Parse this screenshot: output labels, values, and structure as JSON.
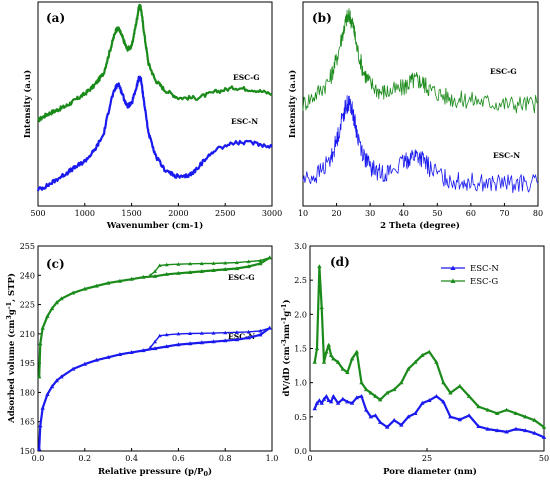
{
  "colors": {
    "g": "#1a8a1a",
    "n": "#1a1aee"
  },
  "chart_data": [
    {
      "panel": "(a)",
      "type": "line",
      "xlabel": "Wavenumber (cm-1)",
      "ylabel": "Intensity (a.u)",
      "xlim": [
        500,
        3000
      ],
      "ylim": [
        0,
        1
      ],
      "xticks": [
        500,
        1000,
        1500,
        2000,
        2500,
        3000
      ],
      "series": [
        {
          "name": "ESC-G",
          "color": "g",
          "x": [
            500,
            600,
            700,
            800,
            900,
            1000,
            1100,
            1200,
            1280,
            1330,
            1360,
            1400,
            1450,
            1500,
            1550,
            1580,
            1600,
            1630,
            1680,
            1750,
            1850,
            2000,
            2200,
            2400,
            2600,
            2800,
            3000
          ],
          "y": [
            0.42,
            0.45,
            0.47,
            0.49,
            0.52,
            0.55,
            0.59,
            0.65,
            0.78,
            0.86,
            0.87,
            0.83,
            0.77,
            0.78,
            0.9,
            0.98,
            0.97,
            0.86,
            0.7,
            0.62,
            0.57,
            0.53,
            0.53,
            0.56,
            0.58,
            0.57,
            0.55
          ]
        },
        {
          "name": "ESC-N",
          "color": "n",
          "x": [
            500,
            600,
            700,
            800,
            900,
            1000,
            1100,
            1200,
            1280,
            1330,
            1360,
            1400,
            1450,
            1500,
            1550,
            1580,
            1600,
            1630,
            1680,
            1750,
            1850,
            1950,
            2050,
            2150,
            2250,
            2400,
            2600,
            2800,
            3000
          ],
          "y": [
            0.08,
            0.1,
            0.13,
            0.16,
            0.19,
            0.22,
            0.27,
            0.35,
            0.52,
            0.58,
            0.6,
            0.55,
            0.49,
            0.5,
            0.58,
            0.63,
            0.62,
            0.52,
            0.36,
            0.25,
            0.18,
            0.15,
            0.14,
            0.16,
            0.21,
            0.28,
            0.31,
            0.31,
            0.29
          ]
        }
      ]
    },
    {
      "panel": "(b)",
      "type": "line",
      "xlabel": "2 Theta (degree)",
      "ylabel": "Intensity (a.u)",
      "xlim": [
        10,
        80
      ],
      "ylim": [
        0,
        1
      ],
      "xticks": [
        10,
        20,
        30,
        40,
        50,
        60,
        70,
        80
      ],
      "series": [
        {
          "name": "ESC-G",
          "color": "g",
          "x": [
            10,
            14,
            18,
            20,
            22,
            23,
            24,
            25,
            26,
            28,
            30,
            33,
            36,
            40,
            42,
            44,
            46,
            48,
            52,
            56,
            60,
            65,
            70,
            75,
            80
          ],
          "y": [
            0.5,
            0.55,
            0.62,
            0.72,
            0.86,
            0.92,
            0.93,
            0.88,
            0.78,
            0.66,
            0.6,
            0.56,
            0.56,
            0.58,
            0.61,
            0.62,
            0.6,
            0.57,
            0.54,
            0.52,
            0.52,
            0.51,
            0.5,
            0.5,
            0.5
          ]
        },
        {
          "name": "ESC-N",
          "color": "n",
          "x": [
            10,
            14,
            18,
            20,
            22,
            23,
            24,
            25,
            26,
            28,
            30,
            33,
            36,
            40,
            42,
            44,
            46,
            48,
            52,
            56,
            60,
            65,
            70,
            75,
            80
          ],
          "y": [
            0.13,
            0.15,
            0.22,
            0.32,
            0.45,
            0.5,
            0.5,
            0.45,
            0.36,
            0.25,
            0.19,
            0.16,
            0.17,
            0.21,
            0.24,
            0.25,
            0.22,
            0.18,
            0.14,
            0.12,
            0.12,
            0.11,
            0.11,
            0.11,
            0.11
          ]
        }
      ]
    },
    {
      "panel": "(c)",
      "type": "line",
      "xlabel": "Relative pressure (p/P0)",
      "ylabel": "Adsorbed volume (cm3 g-1, STP)",
      "xlim": [
        0,
        1
      ],
      "ylim": [
        150,
        255
      ],
      "xticks": [
        0.0,
        0.2,
        0.4,
        0.6,
        0.8,
        1.0
      ],
      "yticks": [
        150,
        165,
        180,
        195,
        210,
        225,
        240,
        255
      ],
      "series": [
        {
          "name": "ESC-G",
          "color": "g",
          "x": [
            0.005,
            0.01,
            0.02,
            0.04,
            0.06,
            0.08,
            0.1,
            0.15,
            0.2,
            0.25,
            0.3,
            0.35,
            0.4,
            0.45,
            0.5,
            0.55,
            0.6,
            0.65,
            0.7,
            0.75,
            0.8,
            0.85,
            0.9,
            0.95,
            0.99
          ],
          "y": [
            188,
            205,
            213,
            219,
            223,
            226,
            228,
            231,
            233,
            234.5,
            236,
            237,
            238,
            239,
            239.5,
            240.5,
            241,
            241.5,
            242,
            242.5,
            243,
            243.5,
            244.5,
            246,
            249
          ],
          "desorption_x": [
            0.99,
            0.95,
            0.9,
            0.85,
            0.8,
            0.75,
            0.7,
            0.65,
            0.6,
            0.55,
            0.52,
            0.5,
            0.48
          ],
          "desorption_y": [
            249,
            247.5,
            247,
            246.5,
            246.3,
            246.1,
            246,
            245.9,
            245.7,
            245.4,
            245,
            242,
            240
          ]
        },
        {
          "name": "ESC-N",
          "color": "n",
          "x": [
            0.005,
            0.01,
            0.02,
            0.04,
            0.06,
            0.08,
            0.1,
            0.15,
            0.2,
            0.25,
            0.3,
            0.35,
            0.4,
            0.45,
            0.5,
            0.55,
            0.6,
            0.65,
            0.7,
            0.75,
            0.8,
            0.85,
            0.9,
            0.95,
            0.99
          ],
          "y": [
            151,
            163,
            172,
            179,
            183,
            186,
            188,
            192,
            194.5,
            196.5,
            198,
            199.5,
            200.5,
            201.5,
            202.5,
            203.5,
            204.5,
            205,
            205.5,
            206,
            206.5,
            207,
            208,
            209.5,
            213
          ],
          "desorption_x": [
            0.99,
            0.95,
            0.9,
            0.85,
            0.8,
            0.75,
            0.7,
            0.65,
            0.6,
            0.55,
            0.52,
            0.5,
            0.48
          ],
          "desorption_y": [
            213,
            211.5,
            211,
            210.8,
            210.6,
            210.4,
            210.3,
            210.2,
            210,
            209.5,
            209,
            206,
            203
          ]
        }
      ]
    },
    {
      "panel": "(d)",
      "type": "line",
      "xlabel": "Pore diameter (nm)",
      "ylabel": "dV/dD (cm-3 nm-1 g-1)",
      "xlim": [
        0,
        50
      ],
      "ylim": [
        0,
        3.0
      ],
      "xticks": [
        0,
        25,
        50
      ],
      "yticks": [
        0.0,
        0.5,
        1.0,
        1.5,
        2.0,
        2.5,
        3.0
      ],
      "legend": "top-right",
      "series": [
        {
          "name": "ESC-N",
          "color": "n",
          "x": [
            1.0,
            1.5,
            2.0,
            2.5,
            3.0,
            3.5,
            4.0,
            4.5,
            5.0,
            6.0,
            7.0,
            8.0,
            9.0,
            10.0,
            11.0,
            12.0,
            13.0,
            14.0,
            15.0,
            16.5,
            18.0,
            19.5,
            21.0,
            22.5,
            24.0,
            25.5,
            27.0,
            28.5,
            30.0,
            32.0,
            34.0,
            36.0,
            38.0,
            40.0,
            42.0,
            44.0,
            46.0,
            48.0,
            50.0
          ],
          "y": [
            0.62,
            0.7,
            0.74,
            0.7,
            0.76,
            0.8,
            0.74,
            0.72,
            0.8,
            0.7,
            0.76,
            0.72,
            0.7,
            0.78,
            0.8,
            0.6,
            0.5,
            0.52,
            0.42,
            0.35,
            0.45,
            0.38,
            0.5,
            0.55,
            0.7,
            0.74,
            0.8,
            0.72,
            0.5,
            0.46,
            0.52,
            0.36,
            0.32,
            0.3,
            0.28,
            0.32,
            0.3,
            0.26,
            0.2
          ]
        },
        {
          "name": "ESC-G",
          "color": "g",
          "x": [
            1.0,
            1.5,
            2.0,
            2.5,
            3.0,
            3.5,
            4.0,
            4.5,
            5.0,
            6.0,
            7.0,
            8.0,
            9.0,
            10.0,
            11.0,
            12.0,
            13.0,
            14.0,
            15.0,
            16.5,
            18.0,
            19.5,
            21.0,
            22.5,
            24.0,
            25.5,
            27.0,
            28.5,
            30.0,
            32.0,
            34.0,
            36.0,
            38.0,
            40.0,
            42.0,
            44.0,
            46.0,
            48.0,
            50.0
          ],
          "y": [
            1.3,
            1.5,
            2.7,
            2.1,
            1.3,
            1.45,
            1.55,
            1.4,
            1.35,
            1.3,
            1.2,
            1.15,
            1.35,
            1.45,
            1.0,
            0.9,
            0.85,
            0.8,
            0.75,
            0.85,
            0.9,
            1.0,
            1.2,
            1.3,
            1.4,
            1.45,
            1.3,
            1.0,
            0.85,
            0.95,
            0.8,
            0.65,
            0.6,
            0.55,
            0.6,
            0.55,
            0.5,
            0.45,
            0.35
          ]
        }
      ]
    }
  ],
  "panels": {
    "a": {
      "label": "(a)",
      "ylabel": "Intensity (a.u)",
      "xlabel": "Wavenumber (cm-1)",
      "tag_g": "ESC-G",
      "tag_n": "ESC-N"
    },
    "b": {
      "label": "(b)",
      "ylabel": "Intensity (a.u)",
      "xlabel": "2 Theta (degree)",
      "tag_g": "ESC-G",
      "tag_n": "ESC-N"
    },
    "c": {
      "label": "(c)",
      "xlabel": "Relative pressure (p/P",
      "xlabel_sub": "0",
      "xlabel_end": ")",
      "tag_g": "ESC-G",
      "tag_n": "ESC-N"
    },
    "d": {
      "label": "(d)",
      "xlabel": "Pore diameter (nm)",
      "legend_n": "ESC-N",
      "legend_g": "ESC-G"
    }
  }
}
